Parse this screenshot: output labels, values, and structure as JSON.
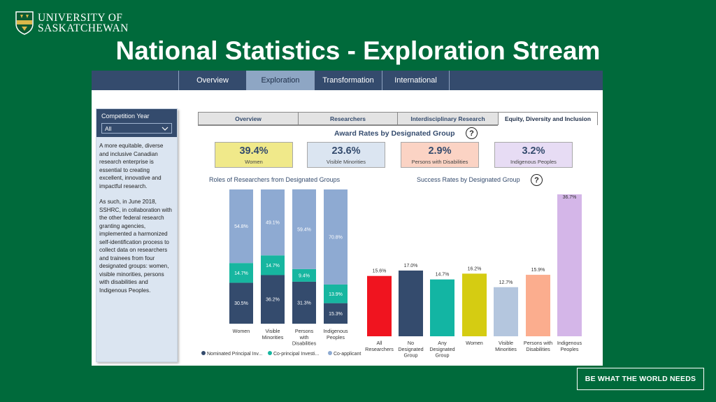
{
  "university": {
    "line1": "UNIVERSITY OF",
    "line2": "SASKATCHEWAN"
  },
  "slide_title": "National Statistics - Exploration Stream",
  "top_tabs": [
    "Overview",
    "Exploration",
    "Transformation",
    "International"
  ],
  "sidebar": {
    "filter_label": "Competition Year",
    "filter_value": "All",
    "para1": "A more equitable, diverse and inclusive Canadian research enterprise is essential to creating excellent, innovative and impactful research.",
    "para2": "As such, in June 2018, SSHRC, in collaboration with the other federal research granting agencies, implemented a harmonized self-identification process to collect data on researchers and trainees from four designated groups: women, visible minorities, persons with disabilities and Indigenous Peoples."
  },
  "sub_tabs": [
    "Overview",
    "Researchers",
    "Interdisciplinary Research",
    "Equity, Diversity and Inclusion"
  ],
  "award_rates": {
    "title": "Award Rates by Designated Group",
    "help": "?",
    "kpis": [
      {
        "value": "39.4%",
        "label": "Women",
        "bg": "#f0e98a"
      },
      {
        "value": "23.6%",
        "label": "Visible Minorities",
        "bg": "#dbe5f1"
      },
      {
        "value": "2.9%",
        "label": "Persons with Disabilities",
        "bg": "#fbd3c4"
      },
      {
        "value": "3.2%",
        "label": "Indigenous Peoples",
        "bg": "#e7dcf4"
      }
    ]
  },
  "colors": {
    "dark_navy": "#344b6d",
    "teal": "#17b6a0",
    "light_blue": "#8eaad2",
    "brand_green": "#006a3b"
  },
  "chart_data": [
    {
      "type": "bar",
      "stacked": true,
      "title": "Roles of Researchers from Designated Groups",
      "categories": [
        "Women",
        "Visible Minorities",
        "Persons with Disabilities",
        "Indigenous Peoples"
      ],
      "category_labels": [
        [
          "Women"
        ],
        [
          "Visible",
          "Minorities"
        ],
        [
          "Persons",
          "with",
          "Disabilities"
        ],
        [
          "Indigenous",
          "Peoples"
        ]
      ],
      "series": [
        {
          "name": "Nominated Principal Inv...",
          "color": "#344b6d",
          "values": [
            30.5,
            36.2,
            31.3,
            15.3
          ]
        },
        {
          "name": "Co-principal Investi...",
          "color": "#17b6a0",
          "values": [
            14.7,
            14.7,
            9.4,
            13.9
          ]
        },
        {
          "name": "Co-applicant",
          "color": "#8eaad2",
          "values": [
            54.8,
            49.1,
            59.4,
            70.8
          ]
        }
      ],
      "legend_position": "bottom",
      "ylim": [
        0,
        100
      ]
    },
    {
      "type": "bar",
      "title": "Success Rates by Designated Group",
      "help": "?",
      "categories": [
        "All Researchers",
        "No Designated Group",
        "Any Designated Group",
        "Women",
        "Visible Minorities",
        "Persons with Disabilities",
        "Indigenous Peoples"
      ],
      "category_labels": [
        [
          "All",
          "Researchers"
        ],
        [
          "No",
          "Designated",
          "Group"
        ],
        [
          "Any",
          "Designated",
          "Group"
        ],
        [
          "Women"
        ],
        [
          "Visible",
          "Minorities"
        ],
        [
          "Persons with",
          "Disabilities"
        ],
        [
          "Indigenous",
          "Peoples"
        ]
      ],
      "values": [
        15.6,
        17.0,
        14.7,
        16.2,
        12.7,
        15.9,
        36.7
      ],
      "colors": [
        "#f0141f",
        "#344b6d",
        "#13b5a3",
        "#d5cc12",
        "#b4c6de",
        "#fbad8e",
        "#d4b6e8"
      ],
      "ylim": [
        0,
        36.7
      ]
    }
  ],
  "footer_badge": "BE WHAT THE WORLD NEEDS"
}
